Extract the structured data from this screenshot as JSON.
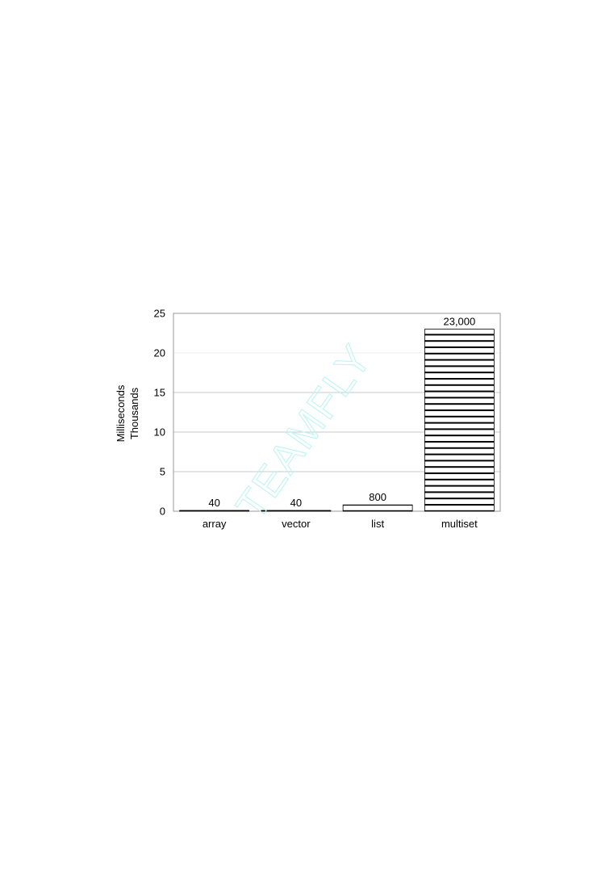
{
  "watermark": "TEAMFLY",
  "chart_data": {
    "type": "bar",
    "categories": [
      "array",
      "vector",
      "list",
      "multiset"
    ],
    "values": [
      40,
      40,
      800,
      23000
    ],
    "data_labels": [
      "40",
      "40",
      "800",
      "23,000"
    ],
    "ylabel_lines": [
      "Milliseconds",
      "Thousands"
    ],
    "ylim": [
      0,
      25
    ],
    "yticks": [
      0,
      5,
      10,
      15,
      20,
      25
    ],
    "y_display_scale": 1000,
    "grid": true,
    "legend": "none",
    "bar_pattern": "horizontal-stripes",
    "colors": {
      "bar_stroke": "#000000",
      "grid": "#c8c8c8",
      "frame": "#9a9a9a"
    }
  }
}
